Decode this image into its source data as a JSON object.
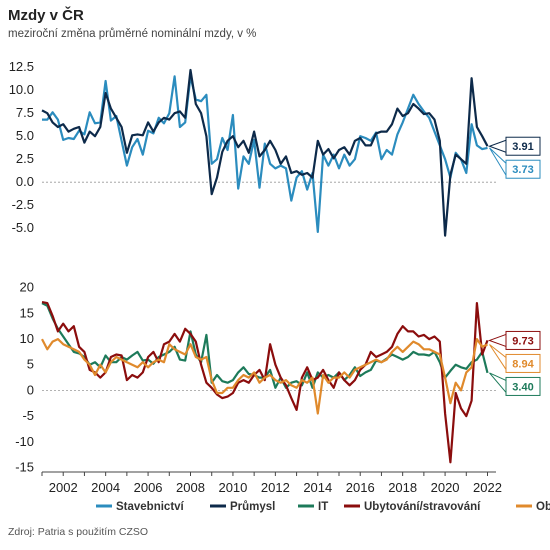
{
  "title": "Mzdy v ČR",
  "subtitle": "meziroční změna průměrné nominální mzdy, v %",
  "source": "Zdroj: Patria s použitím CZSO",
  "colors": {
    "Stavebnictví": "#2b8cbe",
    "Průmysl": "#0d2a4a",
    "IT": "#1d7a5a",
    "Ubytování/stravování": "#8b0d0d",
    "Obchod": "#e08a2c",
    "grid": "#999999",
    "axis": "#444444"
  },
  "legend": [
    "Stavebnictví",
    "Průmysl",
    "IT",
    "Ubytování/stravování",
    "Obchod"
  ],
  "chart_data": [
    {
      "type": "line",
      "panel": "top",
      "ylim": [
        -6.5,
        13.5
      ],
      "y_ticks": [
        "12.5",
        "10.0",
        "7.5",
        "5.0",
        "2.5",
        "0.0",
        "-2.5",
        "-5.0"
      ],
      "xlim": [
        2001,
        2022.4
      ],
      "x_ticks": [
        "2002",
        "2004",
        "2006",
        "2008",
        "2010",
        "2012",
        "2014",
        "2016",
        "2018",
        "2020",
        "2022"
      ],
      "series": [
        {
          "name": "Stavebnictví",
          "x": [
            2001.0,
            2001.25,
            2001.5,
            2001.75,
            2002.0,
            2002.25,
            2002.5,
            2002.75,
            2003.0,
            2003.25,
            2003.5,
            2003.75,
            2004.0,
            2004.25,
            2004.5,
            2004.75,
            2005.0,
            2005.25,
            2005.5,
            2005.75,
            2006.0,
            2006.25,
            2006.5,
            2006.75,
            2007.0,
            2007.25,
            2007.5,
            2007.75,
            2008.0,
            2008.25,
            2008.5,
            2008.75,
            2009.0,
            2009.25,
            2009.5,
            2009.75,
            2010.0,
            2010.25,
            2010.5,
            2010.75,
            2011.0,
            2011.25,
            2011.5,
            2011.75,
            2012.0,
            2012.25,
            2012.5,
            2012.75,
            2013.0,
            2013.25,
            2013.5,
            2013.75,
            2014.0,
            2014.25,
            2014.5,
            2014.75,
            2015.0,
            2015.25,
            2015.5,
            2015.75,
            2016.0,
            2016.25,
            2016.5,
            2016.75,
            2017.0,
            2017.25,
            2017.5,
            2017.75,
            2018.0,
            2018.25,
            2018.5,
            2018.75,
            2019.0,
            2019.25,
            2019.5,
            2019.75,
            2020.0,
            2020.25,
            2020.5,
            2020.75,
            2021.0,
            2021.25,
            2021.5,
            2021.75,
            2022.0
          ],
          "values": [
            6.8,
            6.8,
            7.6,
            6.8,
            4.6,
            4.8,
            4.7,
            5.6,
            5.2,
            7.6,
            6.4,
            6.5,
            11.0,
            6.7,
            7.2,
            4.5,
            1.8,
            3.8,
            4.7,
            3.0,
            5.6,
            5.3,
            7.0,
            6.4,
            7.5,
            11.5,
            6.0,
            6.5,
            11.5,
            9.0,
            8.8,
            9.5,
            2.0,
            2.5,
            4.8,
            3.5,
            7.3,
            -0.7,
            2.8,
            2.0,
            4.6,
            -0.6,
            4.2,
            2.0,
            1.5,
            1.8,
            1.5,
            -2.0,
            0.5,
            1.2,
            -0.8,
            1.0,
            -5.4,
            3.0,
            1.8,
            3.0,
            1.5,
            3.0,
            1.8,
            2.5,
            5.0,
            4.8,
            4.5,
            5.4,
            2.5,
            3.5,
            3.0,
            5.2,
            6.5,
            8.0,
            9.5,
            8.5,
            7.7,
            7.0,
            5.5,
            4.0,
            2.5,
            0.5,
            3.2,
            2.5,
            1.0,
            6.3,
            4.0,
            3.6,
            3.73
          ]
        },
        {
          "name": "Průmysl",
          "x": [
            2001.0,
            2001.25,
            2001.5,
            2001.75,
            2002.0,
            2002.25,
            2002.5,
            2002.75,
            2003.0,
            2003.25,
            2003.5,
            2003.75,
            2004.0,
            2004.25,
            2004.5,
            2004.75,
            2005.0,
            2005.25,
            2005.5,
            2005.75,
            2006.0,
            2006.25,
            2006.5,
            2006.75,
            2007.0,
            2007.25,
            2007.5,
            2007.75,
            2008.0,
            2008.25,
            2008.5,
            2008.75,
            2009.0,
            2009.25,
            2009.5,
            2009.75,
            2010.0,
            2010.25,
            2010.5,
            2010.75,
            2011.0,
            2011.25,
            2011.5,
            2011.75,
            2012.0,
            2012.25,
            2012.5,
            2012.75,
            2013.0,
            2013.25,
            2013.5,
            2013.75,
            2014.0,
            2014.25,
            2014.5,
            2014.75,
            2015.0,
            2015.25,
            2015.5,
            2015.75,
            2016.0,
            2016.25,
            2016.5,
            2016.75,
            2017.0,
            2017.25,
            2017.5,
            2017.75,
            2018.0,
            2018.25,
            2018.5,
            2018.75,
            2019.0,
            2019.25,
            2019.5,
            2019.75,
            2020.0,
            2020.25,
            2020.5,
            2020.75,
            2021.0,
            2021.25,
            2021.5,
            2021.75,
            2022.0
          ],
          "values": [
            7.8,
            7.5,
            6.5,
            6.0,
            6.3,
            5.5,
            5.8,
            6.0,
            4.3,
            5.5,
            5.0,
            6.0,
            9.7,
            8.0,
            7.0,
            6.0,
            3.2,
            5.1,
            5.2,
            5.1,
            6.5,
            5.5,
            6.5,
            7.0,
            6.8,
            7.5,
            7.7,
            7.0,
            12.2,
            8.5,
            7.5,
            5.0,
            -1.3,
            0.5,
            3.3,
            4.5,
            5.0,
            3.8,
            4.5,
            3.2,
            5.5,
            2.8,
            3.5,
            4.5,
            3.5,
            2.0,
            2.8,
            1.0,
            1.2,
            0.8,
            1.0,
            0.5,
            4.5,
            3.0,
            3.6,
            2.6,
            3.5,
            3.8,
            3.0,
            4.5,
            4.8,
            4.0,
            4.0,
            5.3,
            5.5,
            5.5,
            6.3,
            8.0,
            7.2,
            7.5,
            8.5,
            8.0,
            7.4,
            7.5,
            6.8,
            4.5,
            -5.8,
            0.8,
            3.0,
            2.5,
            2.0,
            11.3,
            6.0,
            5.0,
            3.91
          ]
        }
      ],
      "end_labels": [
        {
          "series": "Průmysl",
          "text": "3.91"
        },
        {
          "series": "Stavebnictví",
          "text": "3.73"
        }
      ]
    },
    {
      "type": "line",
      "panel": "bottom",
      "ylim": [
        -15.5,
        21.5
      ],
      "y_ticks": [
        "20",
        "15",
        "10",
        "5",
        "0",
        "-5",
        "-10",
        "-15"
      ],
      "xlim": [
        2001,
        2022.4
      ],
      "x_ticks": [
        "2002",
        "2004",
        "2006",
        "2008",
        "2010",
        "2012",
        "2014",
        "2016",
        "2018",
        "2020",
        "2022"
      ],
      "series": [
        {
          "name": "IT",
          "x": [
            2001.0,
            2001.25,
            2001.5,
            2001.75,
            2002.0,
            2002.25,
            2002.5,
            2002.75,
            2003.0,
            2003.25,
            2003.5,
            2003.75,
            2004.0,
            2004.25,
            2004.5,
            2004.75,
            2005.0,
            2005.25,
            2005.5,
            2005.75,
            2006.0,
            2006.25,
            2006.5,
            2006.75,
            2007.0,
            2007.25,
            2007.5,
            2007.75,
            2008.0,
            2008.25,
            2008.5,
            2008.75,
            2009.0,
            2009.25,
            2009.5,
            2009.75,
            2010.0,
            2010.25,
            2010.5,
            2010.75,
            2011.0,
            2011.25,
            2011.5,
            2011.75,
            2012.0,
            2012.25,
            2012.5,
            2012.75,
            2013.0,
            2013.25,
            2013.5,
            2013.75,
            2014.0,
            2014.25,
            2014.5,
            2014.75,
            2015.0,
            2015.25,
            2015.5,
            2015.75,
            2016.0,
            2016.25,
            2016.5,
            2016.75,
            2017.0,
            2017.25,
            2017.5,
            2017.75,
            2018.0,
            2018.25,
            2018.5,
            2018.75,
            2019.0,
            2019.25,
            2019.5,
            2019.75,
            2020.0,
            2020.25,
            2020.5,
            2020.75,
            2021.0,
            2021.25,
            2021.5,
            2021.75,
            2022.0
          ],
          "values": [
            17.0,
            16.5,
            14.0,
            12.0,
            10.5,
            9.0,
            7.5,
            7.2,
            6.5,
            5.0,
            5.5,
            4.5,
            6.8,
            5.5,
            5.5,
            6.5,
            6.0,
            6.8,
            7.5,
            5.8,
            6.0,
            5.2,
            6.5,
            7.0,
            7.5,
            8.5,
            6.0,
            5.8,
            11.5,
            7.0,
            5.5,
            10.8,
            1.5,
            3.0,
            1.8,
            1.5,
            2.0,
            3.5,
            4.5,
            3.2,
            3.0,
            2.5,
            2.5,
            4.0,
            0.5,
            2.5,
            0.5,
            1.5,
            1.8,
            1.0,
            3.5,
            0.5,
            3.5,
            2.5,
            3.0,
            2.5,
            3.5,
            2.0,
            3.0,
            4.5,
            2.8,
            3.5,
            4.0,
            5.8,
            5.5,
            6.2,
            7.0,
            6.5,
            6.0,
            6.5,
            7.5,
            7.0,
            7.0,
            6.8,
            7.5,
            5.5,
            2.5,
            3.8,
            5.0,
            4.5,
            4.2,
            5.5,
            6.0,
            7.5,
            3.4
          ]
        },
        {
          "name": "Ubytování/stravování",
          "x": [
            2001.0,
            2001.25,
            2001.5,
            2001.75,
            2002.0,
            2002.25,
            2002.5,
            2002.75,
            2003.0,
            2003.25,
            2003.5,
            2003.75,
            2004.0,
            2004.25,
            2004.5,
            2004.75,
            2005.0,
            2005.25,
            2005.5,
            2005.75,
            2006.0,
            2006.25,
            2006.5,
            2006.75,
            2007.0,
            2007.25,
            2007.5,
            2007.75,
            2008.0,
            2008.25,
            2008.5,
            2008.75,
            2009.0,
            2009.25,
            2009.5,
            2009.75,
            2010.0,
            2010.25,
            2010.5,
            2010.75,
            2011.0,
            2011.25,
            2011.5,
            2011.75,
            2012.0,
            2012.25,
            2012.5,
            2012.75,
            2013.0,
            2013.25,
            2013.5,
            2013.75,
            2014.0,
            2014.25,
            2014.5,
            2014.75,
            2015.0,
            2015.25,
            2015.5,
            2015.75,
            2016.0,
            2016.25,
            2016.5,
            2016.75,
            2017.0,
            2017.25,
            2017.5,
            2017.75,
            2018.0,
            2018.25,
            2018.5,
            2018.75,
            2019.0,
            2019.25,
            2019.5,
            2019.75,
            2020.0,
            2020.25,
            2020.5,
            2020.75,
            2021.0,
            2021.25,
            2021.5,
            2021.75,
            2022.0
          ],
          "values": [
            17.2,
            17.0,
            14.5,
            11.5,
            13.0,
            11.5,
            12.5,
            8.5,
            7.5,
            4.0,
            3.5,
            2.5,
            3.5,
            6.5,
            7.0,
            6.8,
            2.0,
            3.0,
            2.5,
            3.5,
            6.5,
            7.5,
            5.5,
            9.0,
            9.5,
            11.0,
            9.5,
            12.0,
            11.0,
            9.5,
            5.0,
            1.5,
            0.5,
            -0.8,
            -1.5,
            -1.2,
            -0.5,
            1.5,
            2.0,
            1.5,
            3.0,
            4.0,
            2.0,
            9.0,
            5.0,
            2.5,
            1.0,
            -1.5,
            -3.8,
            2.5,
            4.5,
            2.0,
            2.5,
            4.0,
            2.0,
            0.5,
            3.5,
            2.0,
            1.0,
            2.0,
            4.0,
            5.0,
            7.5,
            6.5,
            7.0,
            7.5,
            8.5,
            11.0,
            12.5,
            11.5,
            11.5,
            10.5,
            10.8,
            10.0,
            10.5,
            9.5,
            -4.5,
            -14.0,
            -0.5,
            -3.5,
            -5.0,
            -2.0,
            17.0,
            7.0,
            9.73
          ]
        },
        {
          "name": "Obchod",
          "x": [
            2001.0,
            2001.25,
            2001.5,
            2001.75,
            2002.0,
            2002.25,
            2002.5,
            2002.75,
            2003.0,
            2003.25,
            2003.5,
            2003.75,
            2004.0,
            2004.25,
            2004.5,
            2004.75,
            2005.0,
            2005.25,
            2005.5,
            2005.75,
            2006.0,
            2006.25,
            2006.5,
            2006.75,
            2007.0,
            2007.25,
            2007.5,
            2007.75,
            2008.0,
            2008.25,
            2008.5,
            2008.75,
            2009.0,
            2009.25,
            2009.5,
            2009.75,
            2010.0,
            2010.25,
            2010.5,
            2010.75,
            2011.0,
            2011.25,
            2011.5,
            2011.75,
            2012.0,
            2012.25,
            2012.5,
            2012.75,
            2013.0,
            2013.25,
            2013.5,
            2013.75,
            2014.0,
            2014.25,
            2014.5,
            2014.75,
            2015.0,
            2015.25,
            2015.5,
            2015.75,
            2016.0,
            2016.25,
            2016.5,
            2016.75,
            2017.0,
            2017.25,
            2017.5,
            2017.75,
            2018.0,
            2018.25,
            2018.5,
            2018.75,
            2019.0,
            2019.25,
            2019.5,
            2019.75,
            2020.0,
            2020.25,
            2020.5,
            2020.75,
            2021.0,
            2021.25,
            2021.5,
            2021.75,
            2022.0
          ],
          "values": [
            10.0,
            8.0,
            9.5,
            10.0,
            9.0,
            8.5,
            8.0,
            7.5,
            6.0,
            5.0,
            3.0,
            5.0,
            3.5,
            5.5,
            6.5,
            6.0,
            5.5,
            5.0,
            4.5,
            5.5,
            4.5,
            5.5,
            6.0,
            5.5,
            9.0,
            8.0,
            7.5,
            7.0,
            9.0,
            6.5,
            6.0,
            6.5,
            2.0,
            -0.5,
            -0.5,
            0.5,
            0.5,
            2.0,
            3.0,
            2.5,
            3.5,
            1.5,
            2.5,
            3.0,
            2.0,
            1.5,
            2.0,
            1.0,
            0.5,
            2.0,
            1.5,
            2.5,
            -4.5,
            3.0,
            1.5,
            2.5,
            2.5,
            3.5,
            2.5,
            4.0,
            4.5,
            5.0,
            5.5,
            6.0,
            5.5,
            6.0,
            7.5,
            8.5,
            7.5,
            8.5,
            9.5,
            9.0,
            8.0,
            8.0,
            7.5,
            7.0,
            2.5,
            -2.5,
            1.5,
            0.0,
            3.5,
            4.5,
            10.0,
            8.5,
            8.94
          ]
        }
      ],
      "end_labels": [
        {
          "series": "Ubytování/stravování",
          "text": "9.73"
        },
        {
          "series": "Obchod",
          "text": "8.94"
        },
        {
          "series": "IT",
          "text": "3.40"
        }
      ]
    }
  ]
}
